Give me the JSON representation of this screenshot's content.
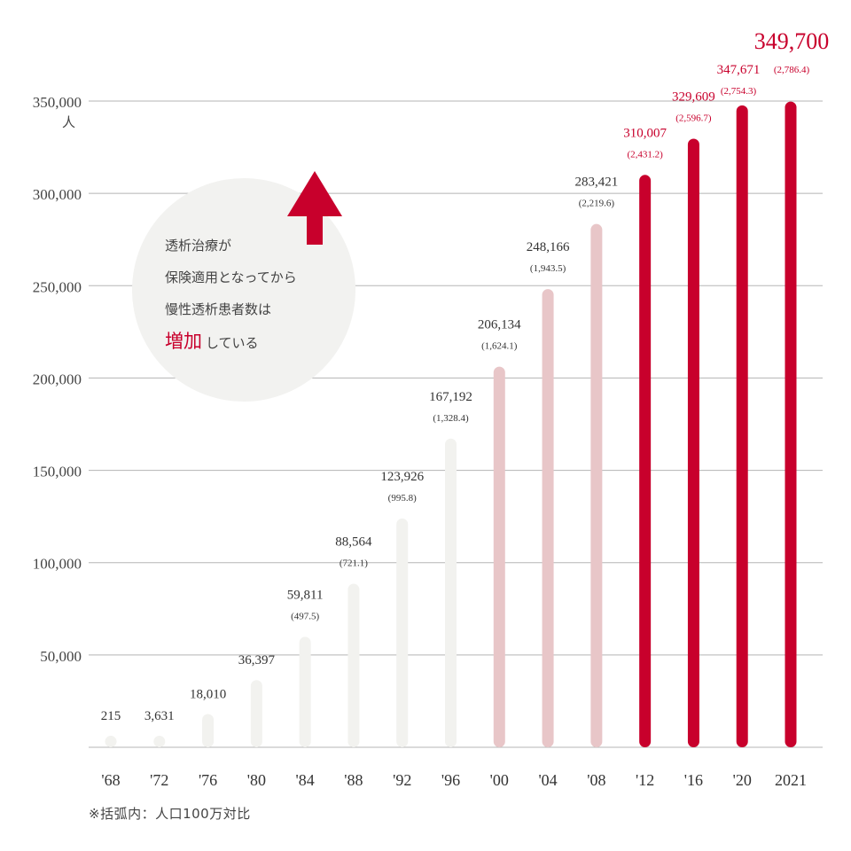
{
  "chart_data": {
    "type": "bar",
    "unit": "人",
    "categories": [
      "'68",
      "'72",
      "'76",
      "'80",
      "'84",
      "'88",
      "'92",
      "'96",
      "'00",
      "'04",
      "'08",
      "'12",
      "'16",
      "'20",
      "2021"
    ],
    "values": [
      215,
      3631,
      18010,
      36397,
      59811,
      88564,
      123926,
      167192,
      206134,
      248166,
      283421,
      310007,
      329609,
      347671,
      349700
    ],
    "value_labels": [
      "215",
      "3,631",
      "18,010",
      "36,397",
      "59,811",
      "88,564",
      "123,926",
      "167,192",
      "206,134",
      "248,166",
      "283,421",
      "310,007",
      "329,609",
      "347,671",
      "349,700"
    ],
    "per_million": [
      null,
      null,
      null,
      null,
      497.5,
      721.1,
      995.8,
      1328.4,
      1624.1,
      1943.5,
      2219.6,
      2431.2,
      2596.7,
      2754.3,
      2786.4
    ],
    "per_million_labels": [
      "",
      "",
      "",
      "",
      "(497.5)",
      "(721.1)",
      "(995.8)",
      "(1,328.4)",
      "(1,624.1)",
      "(1,943.5)",
      "(2,219.6)",
      "(2,431.2)",
      "(2,596.7)",
      "(2,754.3)",
      "(2,786.4)"
    ],
    "y_ticks": [
      50000,
      100000,
      150000,
      200000,
      250000,
      300000,
      350000
    ],
    "y_tick_labels": [
      "50,000",
      "100,000",
      "150,000",
      "200,000",
      "250,000",
      "300,000",
      "350,000"
    ],
    "ylim": [
      0,
      350000
    ],
    "grid": true,
    "colors": {
      "early": "#f2f2ef",
      "middle": "#e8c6c8",
      "recent": "#c8002c",
      "label_dark": "#333333",
      "label_red": "#c8002c",
      "callout_bg": "#f2f2f0"
    },
    "callout": {
      "lines": [
        "透析治療が",
        "保険適用となってから",
        "慢性透析患者数は"
      ],
      "highlight": "増加",
      "suffix": "している",
      "arrow": "up-arrow-icon"
    },
    "note": "※括弧内：人口100万対比"
  }
}
